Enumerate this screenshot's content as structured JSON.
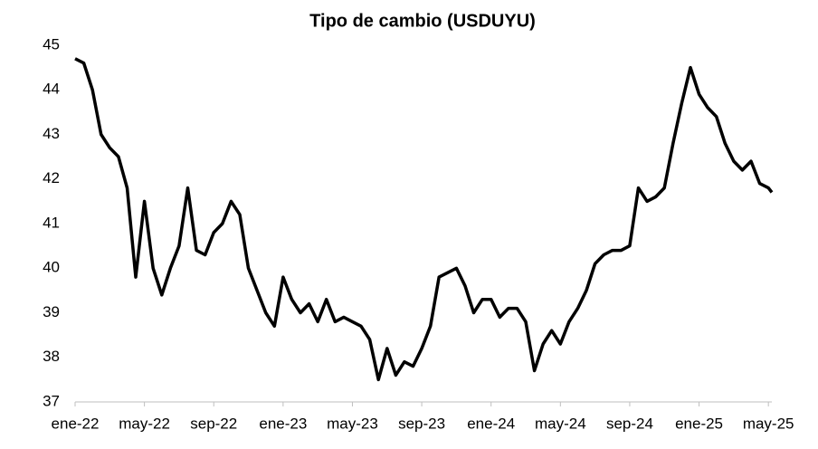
{
  "chart_data": {
    "type": "line",
    "title": "Tipo de cambio (USDUYU)",
    "x": [
      0,
      0.5,
      1,
      1.5,
      2,
      2.5,
      3,
      3.5,
      4,
      4.5,
      5,
      5.5,
      6,
      6.5,
      7,
      7.5,
      8,
      8.5,
      9,
      9.5,
      10,
      10.5,
      11,
      11.5,
      12,
      12.5,
      13,
      13.5,
      14,
      14.5,
      15,
      15.5,
      16,
      16.5,
      17,
      17.5,
      18,
      18.5,
      19,
      19.5,
      20,
      20.5,
      21,
      21.5,
      22,
      22.5,
      23,
      23.5,
      24,
      24.5,
      25,
      25.5,
      26,
      26.5,
      27,
      27.5,
      28,
      28.5,
      29,
      29.5,
      30,
      30.5,
      31,
      31.5,
      32,
      32.5,
      33,
      33.5,
      34,
      34.5,
      35,
      35.5,
      36,
      36.5,
      37,
      37.5,
      38,
      38.5,
      39,
      39.5,
      40,
      40.2
    ],
    "series": [
      {
        "name": "USDUYU",
        "color": "#000000",
        "values": [
          44.7,
          44.6,
          44.0,
          43.0,
          42.7,
          42.5,
          41.8,
          39.8,
          41.5,
          40.0,
          39.4,
          40.0,
          40.5,
          41.8,
          40.4,
          40.3,
          40.8,
          41.0,
          41.5,
          41.2,
          40.0,
          39.5,
          39.0,
          38.7,
          39.8,
          39.3,
          39.0,
          39.2,
          38.8,
          39.3,
          38.8,
          38.9,
          38.8,
          38.7,
          38.4,
          37.5,
          38.2,
          37.6,
          37.9,
          37.8,
          38.2,
          38.7,
          39.8,
          39.9,
          40.0,
          39.6,
          39.0,
          39.3,
          39.3,
          38.9,
          39.1,
          39.1,
          38.8,
          37.7,
          38.3,
          38.6,
          38.3,
          38.8,
          39.1,
          39.5,
          40.1,
          40.3,
          40.4,
          40.4,
          40.5,
          41.8,
          41.5,
          41.6,
          41.8,
          42.8,
          43.7,
          44.5,
          43.9,
          43.6,
          43.4,
          42.8,
          42.4,
          42.2,
          42.4,
          41.9,
          41.8,
          41.7
        ]
      }
    ],
    "xlim": [
      0,
      40.2
    ],
    "xticks": [
      {
        "value": 0,
        "label": "ene-22"
      },
      {
        "value": 4,
        "label": "may-22"
      },
      {
        "value": 8,
        "label": "sep-22"
      },
      {
        "value": 12,
        "label": "ene-23"
      },
      {
        "value": 16,
        "label": "may-23"
      },
      {
        "value": 20,
        "label": "sep-23"
      },
      {
        "value": 24,
        "label": "ene-24"
      },
      {
        "value": 28,
        "label": "may-24"
      },
      {
        "value": 32,
        "label": "sep-24"
      },
      {
        "value": 36,
        "label": "ene-25"
      },
      {
        "value": 40,
        "label": "may-25"
      }
    ],
    "ylim": [
      37,
      45
    ],
    "yticks": [
      37,
      38,
      39,
      40,
      41,
      42,
      43,
      44,
      45
    ],
    "grid": false
  }
}
